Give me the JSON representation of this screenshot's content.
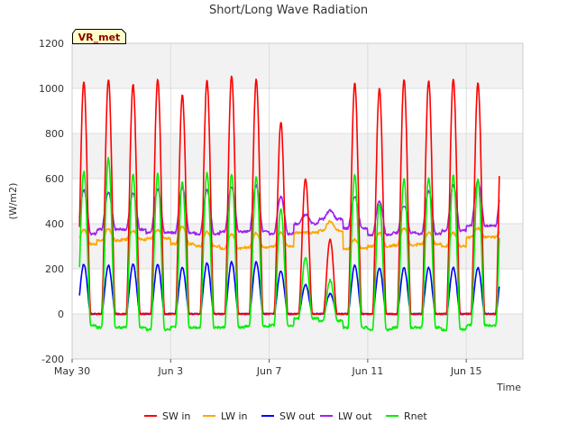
{
  "chart_data": {
    "type": "line",
    "title": "Short/Long Wave Radiation",
    "ylabel": "(W/m2)",
    "xlabel": "Time",
    "site_tag": "VR_met",
    "ylim": [
      -200,
      1200
    ],
    "yticks": [
      -200,
      0,
      200,
      400,
      600,
      800,
      1000,
      1200
    ],
    "xlim": [
      0,
      18.3
    ],
    "xticks": [
      {
        "value": 0,
        "label": "May 30"
      },
      {
        "value": 4,
        "label": "Jun 3"
      },
      {
        "value": 8,
        "label": "Jun 7"
      },
      {
        "value": 12,
        "label": "Jun 11"
      },
      {
        "value": 16,
        "label": "Jun 15"
      }
    ],
    "grid": true,
    "legend_position": "bottom",
    "x_units": "days since May 30",
    "days": 17,
    "series": [
      {
        "name": "SW in",
        "color": "#ff0000",
        "daily_peak": [
          1030,
          1040,
          1020,
          1040,
          970,
          1035,
          1055,
          1040,
          850,
          600,
          330,
          1025,
          1000,
          1040,
          1035,
          1040,
          1025
        ]
      },
      {
        "name": "LW in",
        "color": "#ffa500",
        "daily_peak": [
          375,
          375,
          370,
          370,
          390,
          365,
          355,
          360,
          360,
          360,
          410,
          330,
          360,
          380,
          360,
          360,
          380
        ],
        "night_level": [
          310,
          325,
          330,
          335,
          310,
          300,
          290,
          295,
          300,
          360,
          370,
          290,
          300,
          305,
          310,
          300,
          340
        ]
      },
      {
        "name": "SW out",
        "color": "#0000ff",
        "daily_peak": [
          220,
          215,
          220,
          220,
          205,
          225,
          230,
          230,
          190,
          130,
          90,
          215,
          205,
          205,
          205,
          205,
          205
        ]
      },
      {
        "name": "LW out",
        "color": "#a020f0",
        "daily_peak": [
          550,
          540,
          535,
          555,
          560,
          550,
          565,
          570,
          520,
          440,
          460,
          520,
          500,
          480,
          545,
          570,
          590
        ],
        "night_level": [
          355,
          375,
          375,
          360,
          360,
          355,
          365,
          365,
          355,
          400,
          420,
          380,
          350,
          360,
          355,
          370,
          390
        ]
      },
      {
        "name": "Rnet",
        "color": "#00ee00",
        "daily_peak": [
          630,
          690,
          620,
          620,
          585,
          625,
          620,
          605,
          470,
          250,
          150,
          615,
          490,
          600,
          605,
          615,
          595
        ],
        "night_level": [
          -50,
          -60,
          -60,
          -70,
          -60,
          -60,
          -60,
          -55,
          -50,
          -20,
          -30,
          -60,
          -70,
          -60,
          -60,
          -70,
          -50
        ]
      }
    ]
  }
}
